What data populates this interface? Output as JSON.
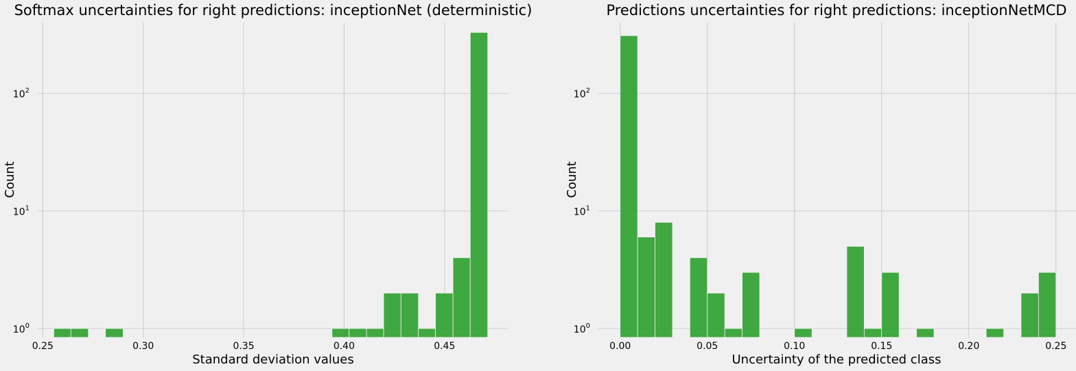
{
  "chart_data": [
    {
      "type": "bar",
      "title": "Softmax uncertainties for right predictions: inceptionNet (deterministic)",
      "xlabel": "Standard deviation values",
      "ylabel": "Count",
      "yscale": "log",
      "xlim": [
        0.2475,
        0.4815
      ],
      "ylim": [
        0.84,
        400
      ],
      "xticks": [
        "0.25",
        "0.30",
        "0.35",
        "0.40",
        "0.45"
      ],
      "xtick_values": [
        0.25,
        0.3,
        0.35,
        0.4,
        0.45
      ],
      "ytick_exponents": [
        "0",
        "1",
        "2"
      ],
      "ytick_values": [
        1,
        10,
        100
      ],
      "grid": true,
      "color": "#2ca02c",
      "bins": [
        {
          "x0": 0.2555,
          "x1": 0.264,
          "count": 1
        },
        {
          "x0": 0.264,
          "x1": 0.2727,
          "count": 1
        },
        {
          "x0": 0.2812,
          "x1": 0.29,
          "count": 1
        },
        {
          "x0": 0.394,
          "x1": 0.4025,
          "count": 1
        },
        {
          "x0": 0.4025,
          "x1": 0.4112,
          "count": 1
        },
        {
          "x0": 0.4112,
          "x1": 0.4197,
          "count": 1
        },
        {
          "x0": 0.4197,
          "x1": 0.4283,
          "count": 2
        },
        {
          "x0": 0.4283,
          "x1": 0.437,
          "count": 2
        },
        {
          "x0": 0.437,
          "x1": 0.4455,
          "count": 1
        },
        {
          "x0": 0.4455,
          "x1": 0.4542,
          "count": 2
        },
        {
          "x0": 0.4542,
          "x1": 0.4628,
          "count": 4
        },
        {
          "x0": 0.4628,
          "x1": 0.4715,
          "count": 330
        }
      ]
    },
    {
      "type": "bar",
      "title": "Predictions uncertainties for right predictions: inceptionNetMCD",
      "xlabel": "Uncertainty of the predicted class",
      "ylabel": "Count",
      "yscale": "log",
      "xlim": [
        -0.0125,
        0.2615
      ],
      "ylim": [
        0.84,
        400
      ],
      "xticks": [
        "0.00",
        "0.05",
        "0.10",
        "0.15",
        "0.20",
        "0.25"
      ],
      "xtick_values": [
        0.0,
        0.05,
        0.1,
        0.15,
        0.2,
        0.25
      ],
      "ytick_exponents": [
        "0",
        "1",
        "2"
      ],
      "ytick_values": [
        1,
        10,
        100
      ],
      "grid": true,
      "color": "#2ca02c",
      "bins": [
        {
          "x0": 0.0,
          "x1": 0.01,
          "count": 310
        },
        {
          "x0": 0.01,
          "x1": 0.02,
          "count": 6
        },
        {
          "x0": 0.02,
          "x1": 0.03,
          "count": 8
        },
        {
          "x0": 0.04,
          "x1": 0.05,
          "count": 4
        },
        {
          "x0": 0.05,
          "x1": 0.06,
          "count": 2
        },
        {
          "x0": 0.06,
          "x1": 0.07,
          "count": 1
        },
        {
          "x0": 0.07,
          "x1": 0.08,
          "count": 3
        },
        {
          "x0": 0.1,
          "x1": 0.11,
          "count": 1
        },
        {
          "x0": 0.13,
          "x1": 0.14,
          "count": 5
        },
        {
          "x0": 0.14,
          "x1": 0.15,
          "count": 1
        },
        {
          "x0": 0.15,
          "x1": 0.16,
          "count": 3
        },
        {
          "x0": 0.17,
          "x1": 0.18,
          "count": 1
        },
        {
          "x0": 0.21,
          "x1": 0.22,
          "count": 1
        },
        {
          "x0": 0.23,
          "x1": 0.24,
          "count": 2
        },
        {
          "x0": 0.24,
          "x1": 0.25,
          "count": 3
        }
      ]
    }
  ]
}
